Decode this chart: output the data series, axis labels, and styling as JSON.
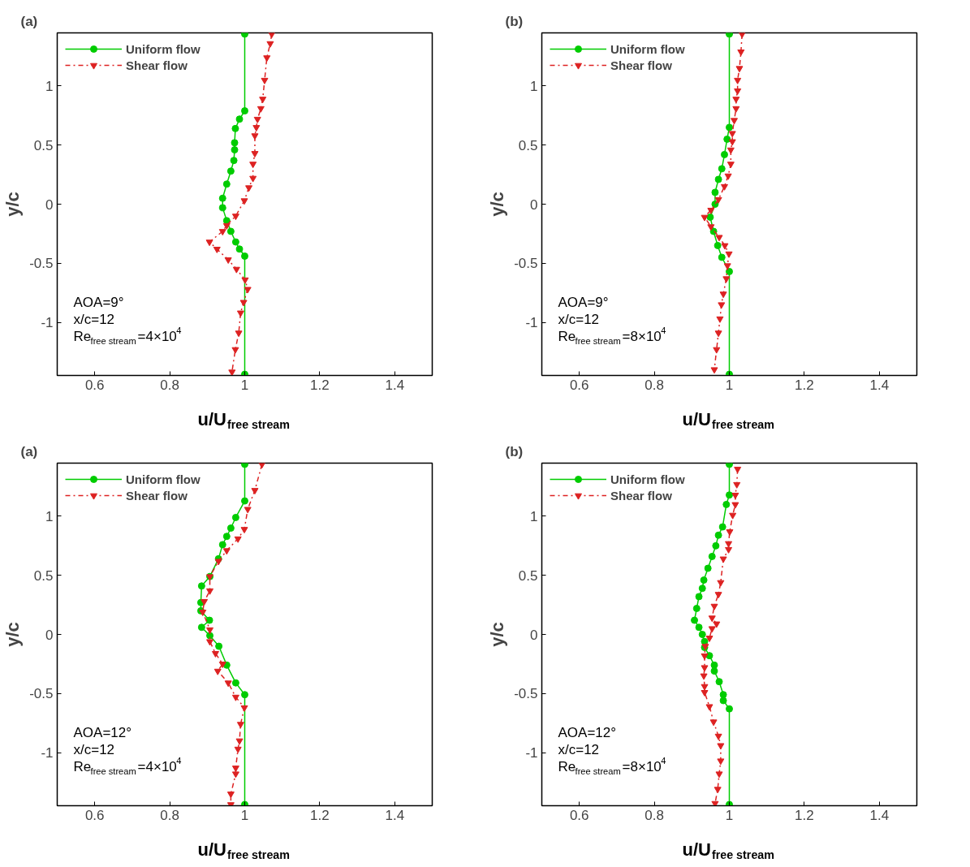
{
  "chart_data": [
    {
      "type": "line",
      "title": "(a)",
      "xlabel": "u/U$_{free stream}$",
      "ylabel": "y/c",
      "xlim": [
        0.5,
        1.5
      ],
      "ylim": [
        -1.45,
        1.45
      ],
      "xticks": [
        0.6,
        0.8,
        1,
        1.2,
        1.4
      ],
      "yticks": [
        -1,
        -0.5,
        0,
        0.5,
        1
      ],
      "grid": false,
      "legend": "top left",
      "annotations": [
        "AOA=9°",
        "x/c=12",
        "Re$_{free stream}$=4×10$^{4}$"
      ],
      "series": [
        {
          "name": "Uniform flow",
          "color": "#00cc00",
          "marker": "circle",
          "line_style": "solid",
          "x": [
            1.0,
            1.0,
            0.986,
            0.975,
            0.973,
            0.973,
            0.971,
            0.963,
            0.952,
            0.941,
            0.941,
            0.952,
            0.963,
            0.976,
            0.986,
            1.0,
            1.0
          ],
          "values": [
            1.44,
            0.79,
            0.72,
            0.64,
            0.52,
            0.46,
            0.37,
            0.28,
            0.17,
            0.05,
            -0.03,
            -0.14,
            -0.23,
            -0.32,
            -0.38,
            -0.44,
            -1.44
          ]
        },
        {
          "name": "Shear flow",
          "color": "#dd2222",
          "marker": "triangle",
          "line_style": "dashed",
          "x": [
            1.072,
            1.068,
            1.059,
            1.053,
            1.048,
            1.043,
            1.034,
            1.031,
            1.027,
            1.027,
            1.022,
            1.022,
            1.011,
            0.999,
            0.976,
            0.952,
            0.941,
            0.906,
            0.926,
            0.956,
            0.978,
            1.001,
            1.008,
            0.997,
            0.989,
            0.984,
            0.975,
            0.966
          ],
          "values": [
            1.44,
            1.36,
            1.24,
            1.05,
            0.89,
            0.81,
            0.72,
            0.65,
            0.58,
            0.43,
            0.34,
            0.22,
            0.14,
            0.03,
            -0.1,
            -0.18,
            -0.23,
            -0.32,
            -0.38,
            -0.47,
            -0.55,
            -0.64,
            -0.72,
            -0.83,
            -0.92,
            -1.09,
            -1.23,
            -1.42
          ]
        }
      ]
    },
    {
      "type": "line",
      "title": "(b)",
      "xlabel": "u/U$_{free stream}$",
      "ylabel": "y/c",
      "xlim": [
        0.5,
        1.5
      ],
      "ylim": [
        -1.45,
        1.45
      ],
      "xticks": [
        0.6,
        0.8,
        1,
        1.2,
        1.4
      ],
      "yticks": [
        -1,
        -0.5,
        0,
        0.5,
        1
      ],
      "grid": false,
      "legend": "top left",
      "annotations": [
        "AOA=9°",
        "x/c=12",
        "Re$_{free stream}$=8×10$^{4}$"
      ],
      "series": [
        {
          "name": "Uniform flow",
          "color": "#00cc00",
          "marker": "circle",
          "line_style": "solid",
          "x": [
            1.0,
            1.0,
            0.994,
            0.987,
            0.98,
            0.971,
            0.962,
            0.962,
            0.949,
            0.958,
            0.969,
            0.98,
            1.0,
            1.0
          ],
          "values": [
            1.44,
            0.65,
            0.55,
            0.42,
            0.3,
            0.21,
            0.1,
            0.0,
            -0.11,
            -0.23,
            -0.35,
            -0.45,
            -0.57,
            -1.44
          ]
        },
        {
          "name": "Shear flow",
          "color": "#dd2222",
          "marker": "triangle",
          "line_style": "dashed",
          "x": [
            1.034,
            1.031,
            1.027,
            1.022,
            1.022,
            1.018,
            1.018,
            1.013,
            1.008,
            1.008,
            1.004,
            1.004,
            0.997,
            0.987,
            0.971,
            0.951,
            0.934,
            0.951,
            0.973,
            0.988,
            0.999,
            0.995,
            0.992,
            0.984,
            0.979,
            0.975,
            0.971,
            0.966,
            0.96
          ],
          "values": [
            1.44,
            1.29,
            1.15,
            1.05,
            0.96,
            0.89,
            0.81,
            0.71,
            0.6,
            0.53,
            0.46,
            0.34,
            0.24,
            0.15,
            0.04,
            -0.05,
            -0.11,
            -0.19,
            -0.28,
            -0.35,
            -0.42,
            -0.52,
            -0.63,
            -0.76,
            -0.85,
            -0.97,
            -1.09,
            -1.23,
            -1.4
          ]
        }
      ]
    },
    {
      "type": "line",
      "title": "(a)",
      "xlabel": "u/U$_{free stream}$",
      "ylabel": "y/c",
      "xlim": [
        0.5,
        1.5
      ],
      "ylim": [
        -1.45,
        1.45
      ],
      "xticks": [
        0.6,
        0.8,
        1,
        1.2,
        1.4
      ],
      "yticks": [
        -1,
        -0.5,
        0,
        0.5,
        1
      ],
      "grid": false,
      "legend": "top left",
      "annotations": [
        "AOA=12°",
        "x/c=12",
        "Re$_{free stream}$=4×10$^{4}$"
      ],
      "series": [
        {
          "name": "Uniform flow",
          "color": "#00cc00",
          "marker": "circle",
          "line_style": "solid",
          "x": [
            1.0,
            1.0,
            0.976,
            0.963,
            0.952,
            0.941,
            0.93,
            0.907,
            0.885,
            0.883,
            0.883,
            0.906,
            0.885,
            0.907,
            0.931,
            0.952,
            0.976,
            1.0,
            1.0
          ],
          "values": [
            1.44,
            1.13,
            0.99,
            0.9,
            0.83,
            0.76,
            0.64,
            0.49,
            0.41,
            0.27,
            0.2,
            0.12,
            0.06,
            -0.01,
            -0.1,
            -0.26,
            -0.41,
            -0.51,
            -1.44
          ]
        },
        {
          "name": "Shear flow",
          "color": "#dd2222",
          "marker": "triangle",
          "line_style": "dashed",
          "x": [
            1.046,
            1.027,
            1.008,
            0.999,
            0.982,
            0.952,
            0.93,
            0.907,
            0.907,
            0.892,
            0.888,
            0.907,
            0.907,
            0.922,
            0.941,
            0.928,
            0.956,
            0.976,
            0.999,
            0.989,
            0.986,
            0.982,
            0.976,
            0.976,
            0.963,
            0.963
          ],
          "values": [
            1.44,
            1.22,
            1.06,
            0.89,
            0.81,
            0.71,
            0.62,
            0.49,
            0.37,
            0.28,
            0.19,
            0.04,
            -0.06,
            -0.16,
            -0.25,
            -0.31,
            -0.41,
            -0.53,
            -0.62,
            -0.76,
            -0.9,
            -0.97,
            -1.13,
            -1.18,
            -1.35,
            -1.44
          ]
        }
      ]
    },
    {
      "type": "line",
      "title": "(b)",
      "xlabel": "u/U$_{free stream}$",
      "ylabel": "y/c",
      "xlim": [
        0.5,
        1.5
      ],
      "ylim": [
        -1.45,
        1.45
      ],
      "xticks": [
        0.6,
        0.8,
        1,
        1.2,
        1.4
      ],
      "yticks": [
        -1,
        -0.5,
        0,
        0.5,
        1
      ],
      "grid": false,
      "legend": "top left",
      "annotations": [
        "AOA=12°",
        "x/c=12",
        "Re$_{free stream}$=8×10$^{4}$"
      ],
      "series": [
        {
          "name": "Uniform flow",
          "color": "#00cc00",
          "marker": "circle",
          "line_style": "solid",
          "x": [
            1.0,
            1.0,
            0.992,
            0.982,
            0.971,
            0.964,
            0.954,
            0.943,
            0.932,
            0.928,
            0.919,
            0.913,
            0.907,
            0.919,
            0.928,
            0.934,
            0.934,
            0.947,
            0.96,
            0.96,
            0.973,
            0.984,
            0.984,
            1.0,
            1.0
          ],
          "values": [
            1.44,
            1.18,
            1.1,
            0.91,
            0.84,
            0.75,
            0.66,
            0.56,
            0.46,
            0.39,
            0.32,
            0.22,
            0.12,
            0.06,
            0.0,
            -0.06,
            -0.11,
            -0.18,
            -0.26,
            -0.31,
            -0.4,
            -0.51,
            -0.56,
            -0.63,
            -1.44
          ]
        },
        {
          "name": "Shear flow",
          "color": "#dd2222",
          "marker": "triangle",
          "line_style": "dashed",
          "x": [
            1.022,
            1.02,
            1.016,
            1.016,
            1.009,
            1.001,
            0.998,
            0.998,
            0.984,
            0.977,
            0.971,
            0.96,
            0.954,
            0.966,
            0.954,
            0.947,
            0.936,
            0.934,
            0.934,
            0.932,
            0.934,
            0.934,
            0.947,
            0.958,
            0.971,
            0.977,
            0.977,
            0.973,
            0.969,
            0.962
          ],
          "values": [
            1.4,
            1.27,
            1.18,
            1.1,
            1.01,
            0.87,
            0.77,
            0.72,
            0.64,
            0.44,
            0.34,
            0.24,
            0.14,
            0.09,
            0.05,
            -0.03,
            -0.1,
            -0.18,
            -0.28,
            -0.35,
            -0.44,
            -0.49,
            -0.61,
            -0.74,
            -0.86,
            -0.94,
            -1.07,
            -1.18,
            -1.31,
            -1.43
          ]
        }
      ]
    }
  ]
}
